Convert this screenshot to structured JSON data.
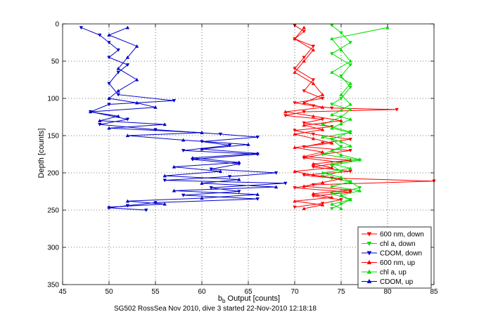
{
  "figure": {
    "caption": "SG502 RossSea Nov 2010, dive 3 started 22-Nov-2010 12:18:18"
  },
  "chart_data": {
    "type": "line",
    "title": "",
    "xlabel_main": "b",
    "xlabel_sub": "b",
    "xlabel_rest": " Output [counts]",
    "ylabel": "Depth [counts]",
    "xlim": [
      45,
      85
    ],
    "ylim": [
      0,
      350
    ],
    "y_reversed": true,
    "x_ticks": [
      45,
      50,
      55,
      60,
      65,
      70,
      75,
      80,
      85
    ],
    "y_ticks": [
      0,
      50,
      100,
      150,
      200,
      250,
      300,
      350
    ],
    "grid": "dotted",
    "legend_position": "bottom-right",
    "series": [
      {
        "name": "600 nm, down",
        "color": "#ff0000",
        "marker": "triangle-down",
        "points": [
          [
            70,
            2
          ],
          [
            71,
            10
          ],
          [
            70,
            20
          ],
          [
            72,
            30
          ],
          [
            71,
            45
          ],
          [
            70,
            60
          ],
          [
            72,
            75
          ],
          [
            71,
            90
          ],
          [
            73,
            100
          ],
          [
            70,
            106
          ],
          [
            72,
            110
          ],
          [
            74,
            113
          ],
          [
            81,
            115
          ],
          [
            71,
            118
          ],
          [
            69,
            123
          ],
          [
            73,
            128
          ],
          [
            71,
            133
          ],
          [
            74,
            138
          ],
          [
            70,
            143
          ],
          [
            72,
            148
          ],
          [
            76,
            155
          ],
          [
            73,
            160
          ],
          [
            71,
            165
          ],
          [
            76,
            170
          ],
          [
            73,
            175
          ],
          [
            71,
            180
          ],
          [
            75,
            186
          ],
          [
            72,
            192
          ],
          [
            76,
            198
          ],
          [
            71,
            203
          ],
          [
            74,
            207
          ],
          [
            85,
            211
          ],
          [
            72,
            216
          ],
          [
            70,
            220
          ],
          [
            76,
            226
          ],
          [
            72,
            231
          ],
          [
            75,
            236
          ],
          [
            73,
            241
          ],
          [
            70,
            246
          ]
        ]
      },
      {
        "name": "chl a, down",
        "color": "#00dd00",
        "marker": "triangle-down",
        "points": [
          [
            74,
            2
          ],
          [
            75,
            12
          ],
          [
            76,
            25
          ],
          [
            74,
            40
          ],
          [
            76,
            55
          ],
          [
            75,
            70
          ],
          [
            76,
            85
          ],
          [
            75,
            100
          ],
          [
            74,
            108
          ],
          [
            76,
            115
          ],
          [
            75,
            125
          ],
          [
            73,
            135
          ],
          [
            76,
            145
          ],
          [
            74,
            155
          ],
          [
            75,
            165
          ],
          [
            73,
            175
          ],
          [
            77,
            183
          ],
          [
            74,
            190
          ],
          [
            75,
            198
          ],
          [
            73,
            205
          ],
          [
            76,
            212
          ],
          [
            77,
            220
          ],
          [
            74,
            228
          ],
          [
            76,
            236
          ],
          [
            75,
            242
          ],
          [
            74,
            248
          ]
        ]
      },
      {
        "name": "CDOM, down",
        "color": "#0000cc",
        "marker": "triangle-down",
        "points": [
          [
            47,
            5
          ],
          [
            49,
            15
          ],
          [
            50,
            25
          ],
          [
            51,
            35
          ],
          [
            50,
            45
          ],
          [
            52,
            55
          ],
          [
            51,
            65
          ],
          [
            50,
            80
          ],
          [
            51,
            95
          ],
          [
            57,
            103
          ],
          [
            50,
            108
          ],
          [
            48,
            118
          ],
          [
            52,
            128
          ],
          [
            49,
            135
          ],
          [
            55,
            142
          ],
          [
            62,
            148
          ],
          [
            66,
            152
          ],
          [
            60,
            158
          ],
          [
            63,
            163
          ],
          [
            58,
            170
          ],
          [
            66,
            175
          ],
          [
            59,
            182
          ],
          [
            64,
            188
          ],
          [
            61,
            195
          ],
          [
            68,
            200
          ],
          [
            63,
            205
          ],
          [
            56,
            210
          ],
          [
            69,
            214
          ],
          [
            61,
            220
          ],
          [
            64,
            225
          ],
          [
            58,
            230
          ],
          [
            66,
            235
          ],
          [
            55,
            240
          ],
          [
            52,
            244
          ],
          [
            50,
            247
          ],
          [
            54,
            250
          ]
        ]
      },
      {
        "name": "600 nm, up",
        "color": "#ff0000",
        "marker": "triangle-up",
        "points": [
          [
            71,
            248
          ],
          [
            73,
            243
          ],
          [
            70,
            238
          ],
          [
            74,
            233
          ],
          [
            72,
            228
          ],
          [
            76,
            223
          ],
          [
            71,
            218
          ],
          [
            73,
            213
          ],
          [
            75,
            208
          ],
          [
            72,
            203
          ],
          [
            70,
            198
          ],
          [
            74,
            193
          ],
          [
            72,
            188
          ],
          [
            76,
            183
          ],
          [
            71,
            178
          ],
          [
            73,
            172
          ],
          [
            70,
            166
          ],
          [
            74,
            160
          ],
          [
            72,
            154
          ],
          [
            70,
            148
          ],
          [
            73,
            142
          ],
          [
            71,
            136
          ],
          [
            75,
            130
          ],
          [
            72,
            124
          ],
          [
            69,
            118
          ],
          [
            73,
            112
          ],
          [
            71,
            106
          ],
          [
            73,
            95
          ],
          [
            72,
            80
          ],
          [
            70,
            65
          ],
          [
            71,
            50
          ],
          [
            72,
            35
          ],
          [
            70,
            20
          ],
          [
            71,
            5
          ]
        ]
      },
      {
        "name": "chl a, up",
        "color": "#00dd00",
        "marker": "triangle-up",
        "points": [
          [
            75,
            248
          ],
          [
            74,
            242
          ],
          [
            76,
            236
          ],
          [
            75,
            230
          ],
          [
            77,
            224
          ],
          [
            74,
            218
          ],
          [
            76,
            212
          ],
          [
            75,
            206
          ],
          [
            73,
            200
          ],
          [
            76,
            194
          ],
          [
            74,
            188
          ],
          [
            77,
            182
          ],
          [
            75,
            176
          ],
          [
            74,
            170
          ],
          [
            76,
            164
          ],
          [
            75,
            158
          ],
          [
            73,
            152
          ],
          [
            76,
            146
          ],
          [
            74,
            140
          ],
          [
            75,
            134
          ],
          [
            76,
            128
          ],
          [
            74,
            122
          ],
          [
            75,
            116
          ],
          [
            76,
            108
          ],
          [
            75,
            95
          ],
          [
            76,
            80
          ],
          [
            74,
            65
          ],
          [
            76,
            50
          ],
          [
            75,
            35
          ],
          [
            74,
            20
          ],
          [
            80,
            5
          ]
        ]
      },
      {
        "name": "CDOM, up",
        "color": "#0000cc",
        "marker": "triangle-up",
        "points": [
          [
            50,
            246
          ],
          [
            56,
            242
          ],
          [
            52,
            238
          ],
          [
            60,
            234
          ],
          [
            66,
            229
          ],
          [
            57,
            224
          ],
          [
            68,
            219
          ],
          [
            60,
            214
          ],
          [
            64,
            209
          ],
          [
            56,
            204
          ],
          [
            62,
            198
          ],
          [
            57,
            192
          ],
          [
            64,
            186
          ],
          [
            59,
            180
          ],
          [
            66,
            174
          ],
          [
            60,
            168
          ],
          [
            65,
            162
          ],
          [
            58,
            156
          ],
          [
            52,
            150
          ],
          [
            60,
            146
          ],
          [
            50,
            140
          ],
          [
            56,
            135
          ],
          [
            49,
            130
          ],
          [
            51,
            124
          ],
          [
            48,
            118
          ],
          [
            55,
            112
          ],
          [
            53,
            106
          ],
          [
            50,
            100
          ],
          [
            51,
            90
          ],
          [
            53,
            75
          ],
          [
            51,
            60
          ],
          [
            52,
            45
          ],
          [
            53,
            30
          ],
          [
            50,
            15
          ],
          [
            52,
            5
          ]
        ]
      }
    ]
  }
}
